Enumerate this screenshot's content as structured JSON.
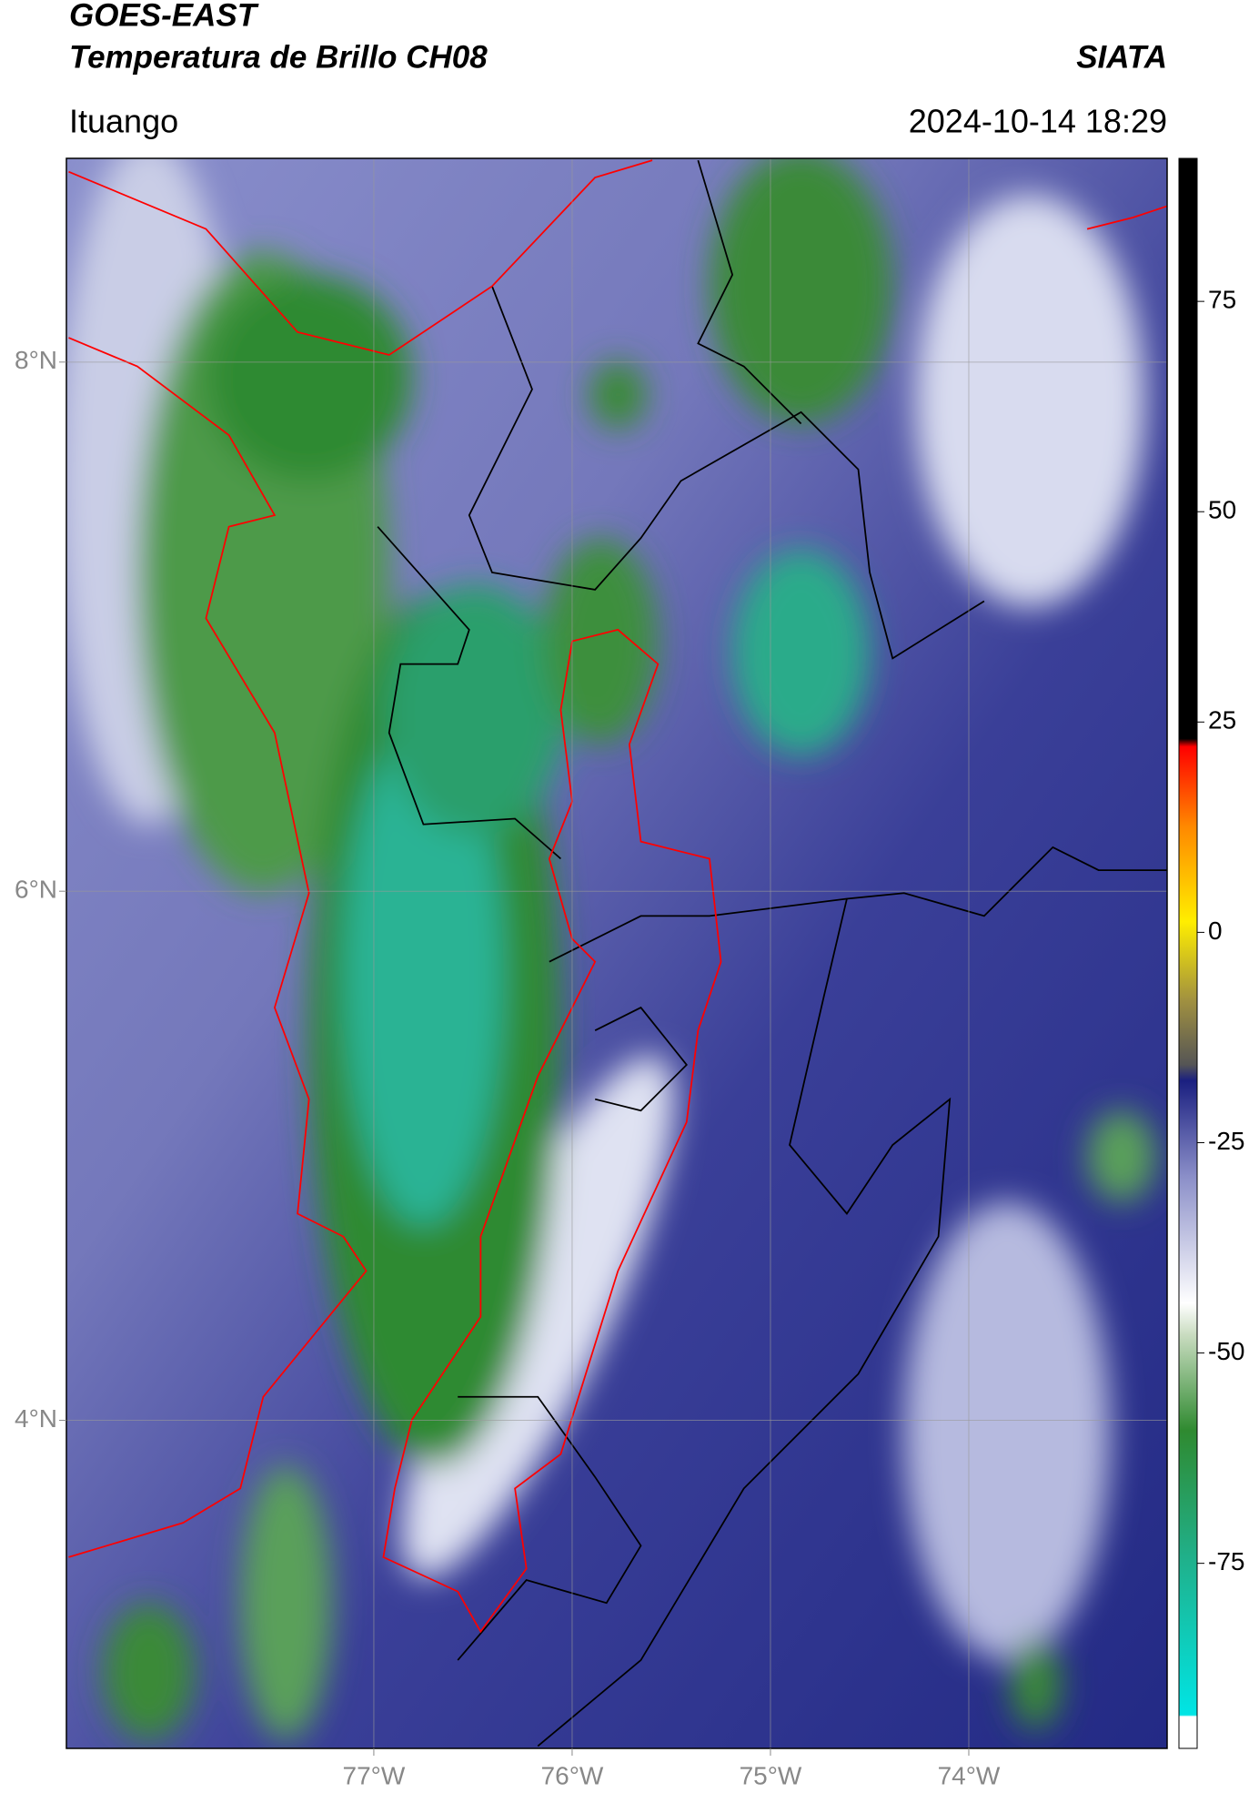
{
  "chart_data": {
    "type": "map",
    "title": "GOES-EAST",
    "subtitle": "Temperatura de Brillo CH08",
    "source": "SIATA",
    "location": "Ituango",
    "datetime": "2024-10-14 18:29",
    "xlim": [
      -78.55,
      -73.0
    ],
    "ylim": [
      2.76,
      8.77
    ],
    "xticks": [
      {
        "value": -77,
        "label": "77°W"
      },
      {
        "value": -76,
        "label": "76°W"
      },
      {
        "value": -75,
        "label": "75°W"
      },
      {
        "value": -74,
        "label": "74°W"
      }
    ],
    "yticks": [
      {
        "value": 8,
        "label": "8°N"
      },
      {
        "value": 6,
        "label": "6°N"
      },
      {
        "value": 4,
        "label": "4°N"
      }
    ],
    "grid": true,
    "colorbar": {
      "lim": [
        -97,
        92
      ],
      "ticks": [
        75,
        50,
        25,
        0,
        -25,
        -50,
        -75
      ]
    }
  }
}
